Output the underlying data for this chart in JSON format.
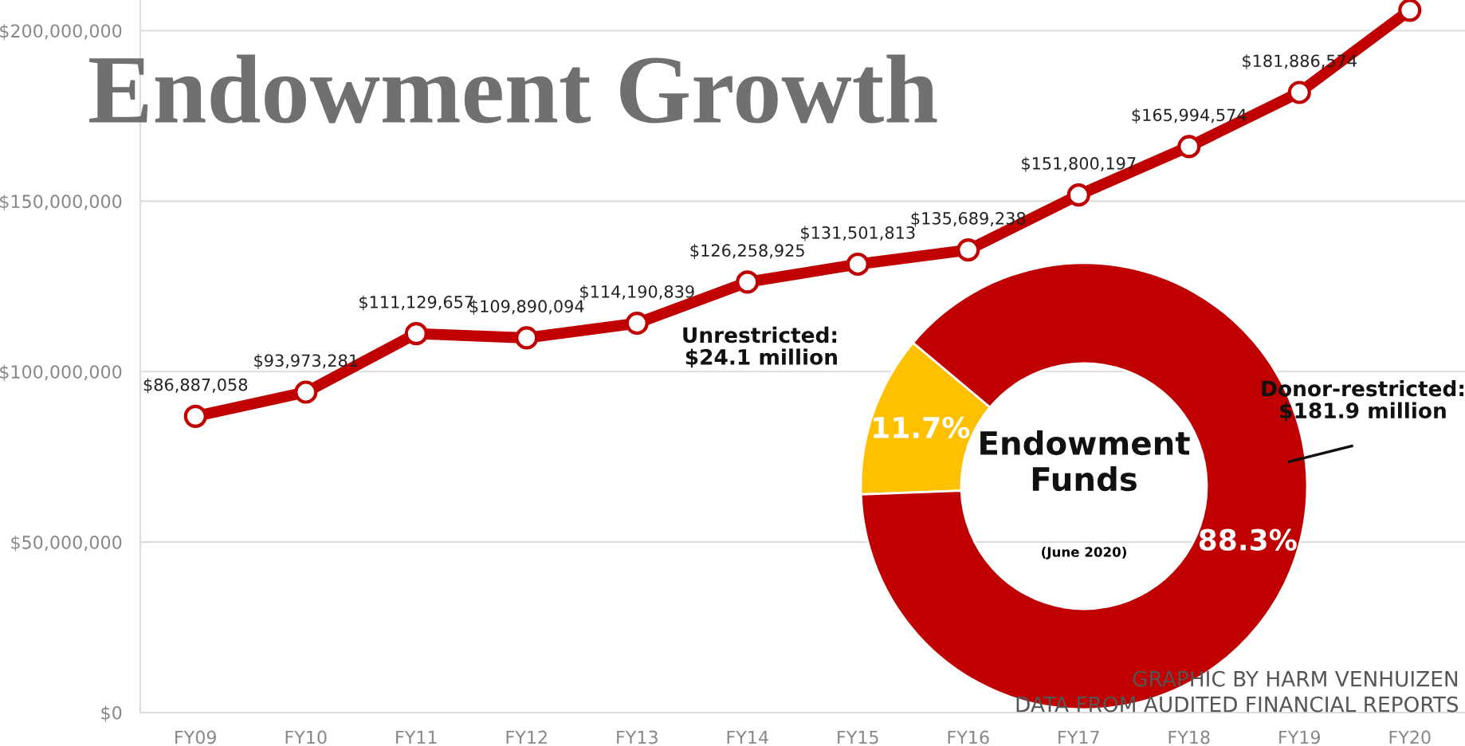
{
  "chart_data": [
    {
      "type": "line",
      "title": "Endowment Growth",
      "categories": [
        "FY09",
        "FY10",
        "FY11",
        "FY12",
        "FY13",
        "FY14",
        "FY15",
        "FY16",
        "FY17",
        "FY18",
        "FY19",
        "FY20"
      ],
      "series": [
        {
          "color": "#c00000",
          "values": [
            86887058,
            93973281,
            111129657,
            109890094,
            114190839,
            126258925,
            131501813,
            135689238,
            151800197,
            165994574,
            181886574,
            206000000
          ],
          "value_labels": [
            "$86,887,058",
            "$93,973,281",
            "$111,129,657",
            "$109,890,094",
            "$114,190,839",
            "$126,258,925",
            "$131,501,813",
            "$135,689,238",
            "$151,800,197",
            "$165,994,574",
            "$181,886,574",
            null
          ]
        }
      ],
      "marker": "circle",
      "line_style": "solid",
      "grid": "y",
      "ylim": [
        0,
        209000000
      ],
      "yticks": [
        {
          "value": 0,
          "label": "$0"
        },
        {
          "value": 50000000,
          "label": "$50,000,000"
        },
        {
          "value": 100000000,
          "label": "$100,000,000"
        },
        {
          "value": 150000000,
          "label": "$150,000,000"
        },
        {
          "value": 200000000,
          "label": "$200,000,000"
        }
      ],
      "annotations": [
        "GRAPHIC BY HARM VENHUIZEN",
        "DATA FROM AUDITED FINANCIAL REPORTS"
      ]
    },
    {
      "type": "donut",
      "title": "Endowment Funds",
      "subtitle": "(June 2020)",
      "categories": [
        "Unrestricted:\n$24.1 million",
        "Donor-restricted:\n$181.9 million"
      ],
      "values": [
        11.7,
        88.3
      ],
      "colors": [
        "#ffc000",
        "#c00000"
      ],
      "value_labels": [
        "11.7%",
        "88.3%"
      ]
    }
  ]
}
